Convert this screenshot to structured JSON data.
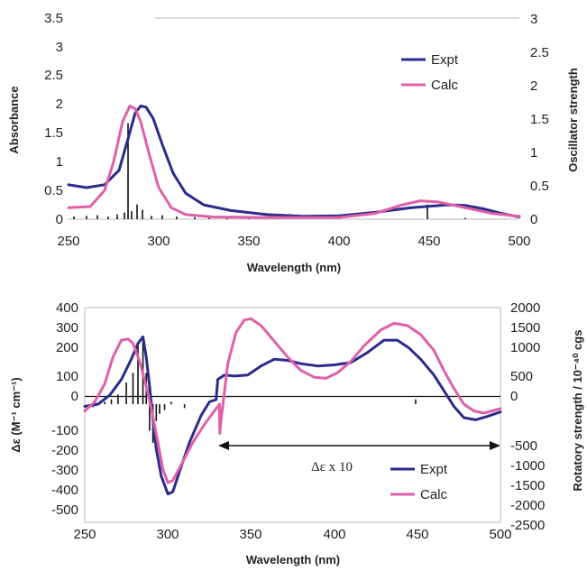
{
  "chart_data": [
    {
      "type": "line",
      "xlabel": "Wavelength (nm)",
      "ylabel": "Absorbance",
      "y2label": "Oscillator strength",
      "xlim": [
        250,
        500
      ],
      "ylim": [
        0,
        3.5
      ],
      "y2lim": [
        0,
        3
      ],
      "x_ticks": [
        "250",
        "300",
        "350",
        "400",
        "450",
        "500"
      ],
      "y_ticks": [
        "0",
        "0.5",
        "1",
        "1.5",
        "2",
        "2.5",
        "3",
        "3.5"
      ],
      "y2_ticks": [
        "0",
        "0.5",
        "1",
        "1.5",
        "2",
        "2.5",
        "3"
      ],
      "grid": false,
      "legend_position": "top-right",
      "series": [
        {
          "name": "Expt",
          "color": "#2b2b8c",
          "axis": "left",
          "points": [
            [
              250,
              0.6
            ],
            [
              260,
              0.55
            ],
            [
              270,
              0.6
            ],
            [
              278,
              0.85
            ],
            [
              283,
              1.4
            ],
            [
              287,
              1.85
            ],
            [
              290,
              1.97
            ],
            [
              293,
              1.95
            ],
            [
              297,
              1.75
            ],
            [
              302,
              1.3
            ],
            [
              308,
              0.8
            ],
            [
              315,
              0.45
            ],
            [
              325,
              0.25
            ],
            [
              340,
              0.15
            ],
            [
              360,
              0.08
            ],
            [
              380,
              0.05
            ],
            [
              400,
              0.06
            ],
            [
              420,
              0.12
            ],
            [
              440,
              0.2
            ],
            [
              460,
              0.25
            ],
            [
              470,
              0.24
            ],
            [
              480,
              0.18
            ],
            [
              490,
              0.1
            ],
            [
              500,
              0.04
            ]
          ]
        },
        {
          "name": "Calc",
          "color": "#e060a8",
          "axis": "left",
          "points": [
            [
              250,
              0.2
            ],
            [
              262,
              0.22
            ],
            [
              270,
              0.5
            ],
            [
              275,
              1.0
            ],
            [
              280,
              1.7
            ],
            [
              284,
              1.97
            ],
            [
              287,
              1.92
            ],
            [
              290,
              1.7
            ],
            [
              295,
              1.1
            ],
            [
              300,
              0.55
            ],
            [
              307,
              0.2
            ],
            [
              315,
              0.08
            ],
            [
              330,
              0.04
            ],
            [
              360,
              0.03
            ],
            [
              400,
              0.03
            ],
            [
              420,
              0.1
            ],
            [
              435,
              0.25
            ],
            [
              445,
              0.32
            ],
            [
              455,
              0.3
            ],
            [
              470,
              0.2
            ],
            [
              485,
              0.1
            ],
            [
              500,
              0.05
            ]
          ]
        }
      ],
      "stick_spectrum": {
        "axis": "right",
        "color": "#111111",
        "sticks": [
          [
            253,
            0.04
          ],
          [
            260,
            0.05
          ],
          [
            266,
            0.06
          ],
          [
            272,
            0.04
          ],
          [
            277,
            0.07
          ],
          [
            281,
            0.1
          ],
          [
            283,
            1.43
          ],
          [
            285,
            0.12
          ],
          [
            288,
            0.22
          ],
          [
            291,
            0.14
          ],
          [
            296,
            0.05
          ],
          [
            302,
            0.06
          ],
          [
            310,
            0.04
          ],
          [
            320,
            0.03
          ],
          [
            328,
            0.02
          ],
          [
            338,
            0.02
          ],
          [
            350,
            0.01
          ],
          [
            449,
            0.22
          ],
          [
            470,
            0.02
          ]
        ]
      }
    },
    {
      "type": "line",
      "xlabel": "Wavelength (nm)",
      "ylabel": "Δε (M⁻¹ cm⁻¹)",
      "y2label": "Rotatory strength / 10⁻⁴⁰ cgs",
      "xlim": [
        250,
        500
      ],
      "ylim": [
        -500,
        400
      ],
      "y2lim": [
        -2500,
        2000
      ],
      "x_ticks": [
        "250",
        "300",
        "350",
        "400",
        "450",
        "500"
      ],
      "y_ticks": [
        "-500",
        "-400",
        "-300",
        "-200",
        "-100",
        "0",
        "100",
        "200",
        "300",
        "400"
      ],
      "y2_ticks": [
        "-2500",
        "-2000",
        "-1500",
        "-1000",
        "-500",
        "0",
        "500",
        "1000",
        "1500",
        "2000"
      ],
      "grid": false,
      "legend_position": "bottom-right",
      "annotation": {
        "text": "Δε x 10",
        "x_range": [
          330,
          500
        ],
        "y": -245
      },
      "series": [
        {
          "name": "Expt",
          "color": "#2b2b8c",
          "axis": "left",
          "points": [
            [
              250,
              -40
            ],
            [
              258,
              -30
            ],
            [
              265,
              10
            ],
            [
              272,
              80
            ],
            [
              278,
              170
            ],
            [
              282,
              240
            ],
            [
              285,
              270
            ],
            [
              287,
              180
            ],
            [
              289,
              50
            ],
            [
              291,
              -100
            ],
            [
              293,
              -230
            ],
            [
              296,
              -350
            ],
            [
              300,
              -430
            ],
            [
              303,
              -420
            ],
            [
              307,
              -330
            ],
            [
              313,
              -200
            ],
            [
              320,
              -80
            ],
            [
              325,
              -20
            ],
            [
              329,
              -10
            ],
            [
              330,
              80
            ],
            [
              334,
              100
            ],
            [
              340,
              95
            ],
            [
              348,
              100
            ],
            [
              356,
              140
            ],
            [
              364,
              170
            ],
            [
              372,
              165
            ],
            [
              380,
              150
            ],
            [
              390,
              140
            ],
            [
              400,
              145
            ],
            [
              410,
              155
            ],
            [
              420,
              200
            ],
            [
              430,
              255
            ],
            [
              438,
              255
            ],
            [
              445,
              220
            ],
            [
              452,
              170
            ],
            [
              460,
              100
            ],
            [
              466,
              30
            ],
            [
              472,
              -40
            ],
            [
              478,
              -90
            ],
            [
              485,
              -100
            ],
            [
              492,
              -85
            ],
            [
              500,
              -65
            ]
          ]
        },
        {
          "name": "Calc",
          "color": "#e060a8",
          "axis": "left",
          "points": [
            [
              250,
              -60
            ],
            [
              256,
              -20
            ],
            [
              262,
              60
            ],
            [
              267,
              180
            ],
            [
              272,
              255
            ],
            [
              276,
              260
            ],
            [
              279,
              240
            ],
            [
              283,
              160
            ],
            [
              287,
              50
            ],
            [
              290,
              -50
            ],
            [
              294,
              -200
            ],
            [
              297,
              -320
            ],
            [
              300,
              -380
            ],
            [
              303,
              -370
            ],
            [
              308,
              -300
            ],
            [
              315,
              -200
            ],
            [
              322,
              -120
            ],
            [
              328,
              -60
            ],
            [
              331,
              -30
            ],
            [
              331.2,
              -160
            ],
            [
              332,
              -100
            ],
            [
              336,
              150
            ],
            [
              341,
              290
            ],
            [
              346,
              345
            ],
            [
              350,
              350
            ],
            [
              356,
              320
            ],
            [
              364,
              250
            ],
            [
              372,
              180
            ],
            [
              380,
              120
            ],
            [
              388,
              90
            ],
            [
              395,
              85
            ],
            [
              402,
              110
            ],
            [
              410,
              160
            ],
            [
              418,
              230
            ],
            [
              428,
              300
            ],
            [
              436,
              330
            ],
            [
              444,
              320
            ],
            [
              452,
              280
            ],
            [
              460,
              210
            ],
            [
              466,
              120
            ],
            [
              472,
              40
            ],
            [
              478,
              -30
            ],
            [
              484,
              -60
            ],
            [
              490,
              -70
            ],
            [
              500,
              -50
            ]
          ]
        }
      ],
      "stick_spectrum": {
        "axis": "right",
        "color": "#111111",
        "sticks": [
          [
            255,
            -60
          ],
          [
            262,
            50
          ],
          [
            266,
            100
          ],
          [
            270,
            200
          ],
          [
            275,
            450
          ],
          [
            279,
            650
          ],
          [
            282,
            1250
          ],
          [
            285,
            1400
          ],
          [
            287,
            650
          ],
          [
            289,
            -550
          ],
          [
            291,
            -800
          ],
          [
            293,
            -350
          ],
          [
            295,
            -200
          ],
          [
            298,
            -120
          ],
          [
            302,
            50
          ],
          [
            310,
            -80
          ],
          [
            449,
            100
          ]
        ]
      }
    }
  ]
}
